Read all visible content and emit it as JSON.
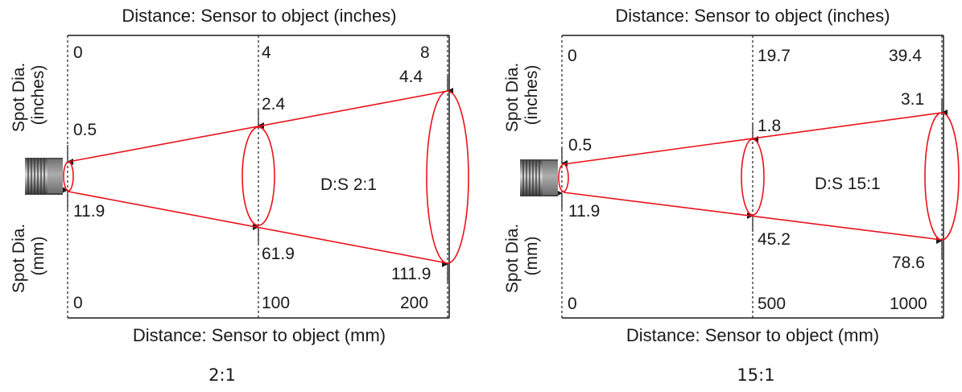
{
  "colors": {
    "beam": "#e8131b",
    "axis": "#1a1a1a",
    "sensor_body": "#6b6b6b"
  },
  "panels": [
    {
      "caption": "2:1",
      "top_axis_label": "Distance: Sensor to object (inches)",
      "bottom_axis_label": "Distance: Sensor to object (mm)",
      "left_top_label_line1": "Spot Dia.",
      "left_top_label_line2": "(inches)",
      "left_bottom_label_line1": "Spot Dia.",
      "left_bottom_label_line2": "(mm)",
      "ratio_label": "D:S 2:1",
      "distance_inches": [
        "0",
        "4",
        "8"
      ],
      "distance_mm": [
        "0",
        "100",
        "200"
      ],
      "spot_inches": [
        "0.5",
        "2.4",
        "4.4"
      ],
      "spot_mm": [
        "11.9",
        "61.9",
        "111.9"
      ]
    },
    {
      "caption": "15:1",
      "top_axis_label": "Distance: Sensor to object (inches)",
      "bottom_axis_label": "Distance: Sensor to object (mm)",
      "left_top_label_line1": "Spot Dia.",
      "left_top_label_line2": "(inches)",
      "left_bottom_label_line1": "Spot Dia.",
      "left_bottom_label_line2": "(mm)",
      "ratio_label": "D:S 15:1",
      "distance_inches": [
        "0",
        "19.7",
        "39.4"
      ],
      "distance_mm": [
        "0",
        "500",
        "1000"
      ],
      "spot_inches": [
        "0.5",
        "1.8",
        "3.1"
      ],
      "spot_mm": [
        "11.9",
        "45.2",
        "78.6"
      ]
    }
  ]
}
